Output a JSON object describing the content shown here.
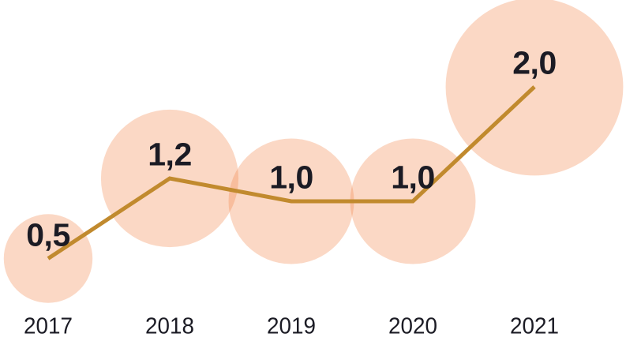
{
  "chart_data": {
    "type": "line",
    "variant": "line-with-proportional-bubbles",
    "title": "",
    "xlabel": "",
    "ylabel": "",
    "categories": [
      "2017",
      "2018",
      "2019",
      "2020",
      "2021"
    ],
    "values": [
      0.5,
      1.2,
      1.0,
      1.0,
      2.0
    ],
    "value_labels": [
      "0,5",
      "1,2",
      "1,0",
      "1,0",
      "2,0"
    ],
    "ylim": [
      0,
      2.4
    ],
    "grid": false,
    "legend": false,
    "axes_visible": false,
    "decimal_separator": ",",
    "bubble_area_proportional_to_value": true,
    "colors": {
      "bubble_fill": "rgba(243,133,75,0.32)",
      "line": "#C18A2E",
      "label_text": "#1B1B24",
      "background": "#FFFFFF"
    }
  }
}
